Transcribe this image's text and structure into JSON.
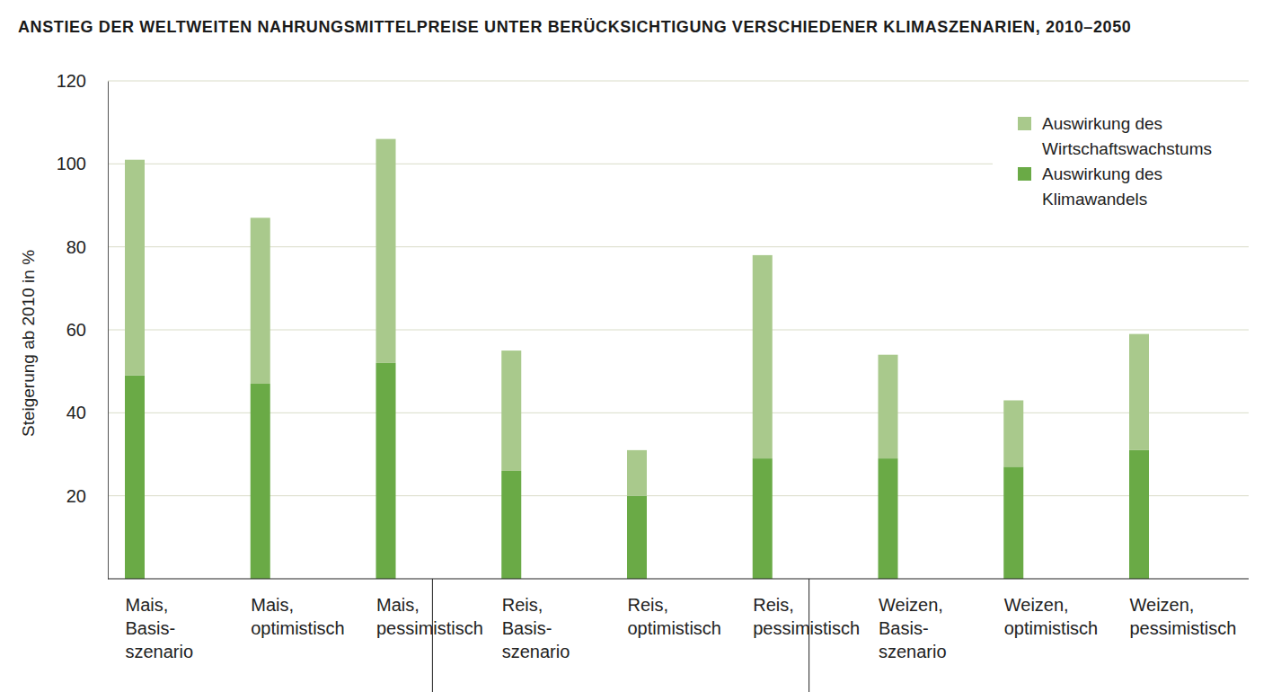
{
  "chart_data": {
    "type": "bar",
    "stacked": true,
    "title": "ANSTIEG DER WELTWEITEN NAHRUNGSMITTELPREISE UNTER BERÜCKSICHTIGUNG VERSCHIEDENER KLIMASZENARIEN, 2010–2050",
    "y_label": "Steigerung ab 2010 in %",
    "categories": [
      "Mais,\nBasis-\nszenario",
      "Mais,\noptimistisch",
      "Mais,\npessimistisch",
      "Reis,\nBasis-\nszenario",
      "Reis,\noptimistisch",
      "Reis,\npessimistisch",
      "Weizen,\nBasis-\nszenario",
      "Weizen,\noptimistisch",
      "Weizen,\npessimistisch"
    ],
    "series": [
      {
        "name": "Auswirkung des\nKlimawandels",
        "color": "#6aaa46",
        "values": [
          49,
          47,
          52,
          26,
          20,
          29,
          29,
          27,
          31
        ]
      },
      {
        "name": "Auswirkung des\nWirtschaftswachstums",
        "color": "#a9c98c",
        "values": [
          52,
          40,
          54,
          29,
          11,
          49,
          25,
          16,
          28
        ]
      }
    ],
    "ylim": [
      0,
      120
    ],
    "yticks": [
      20,
      40,
      60,
      80,
      100,
      120
    ],
    "grid": true,
    "legend": "top-right"
  }
}
